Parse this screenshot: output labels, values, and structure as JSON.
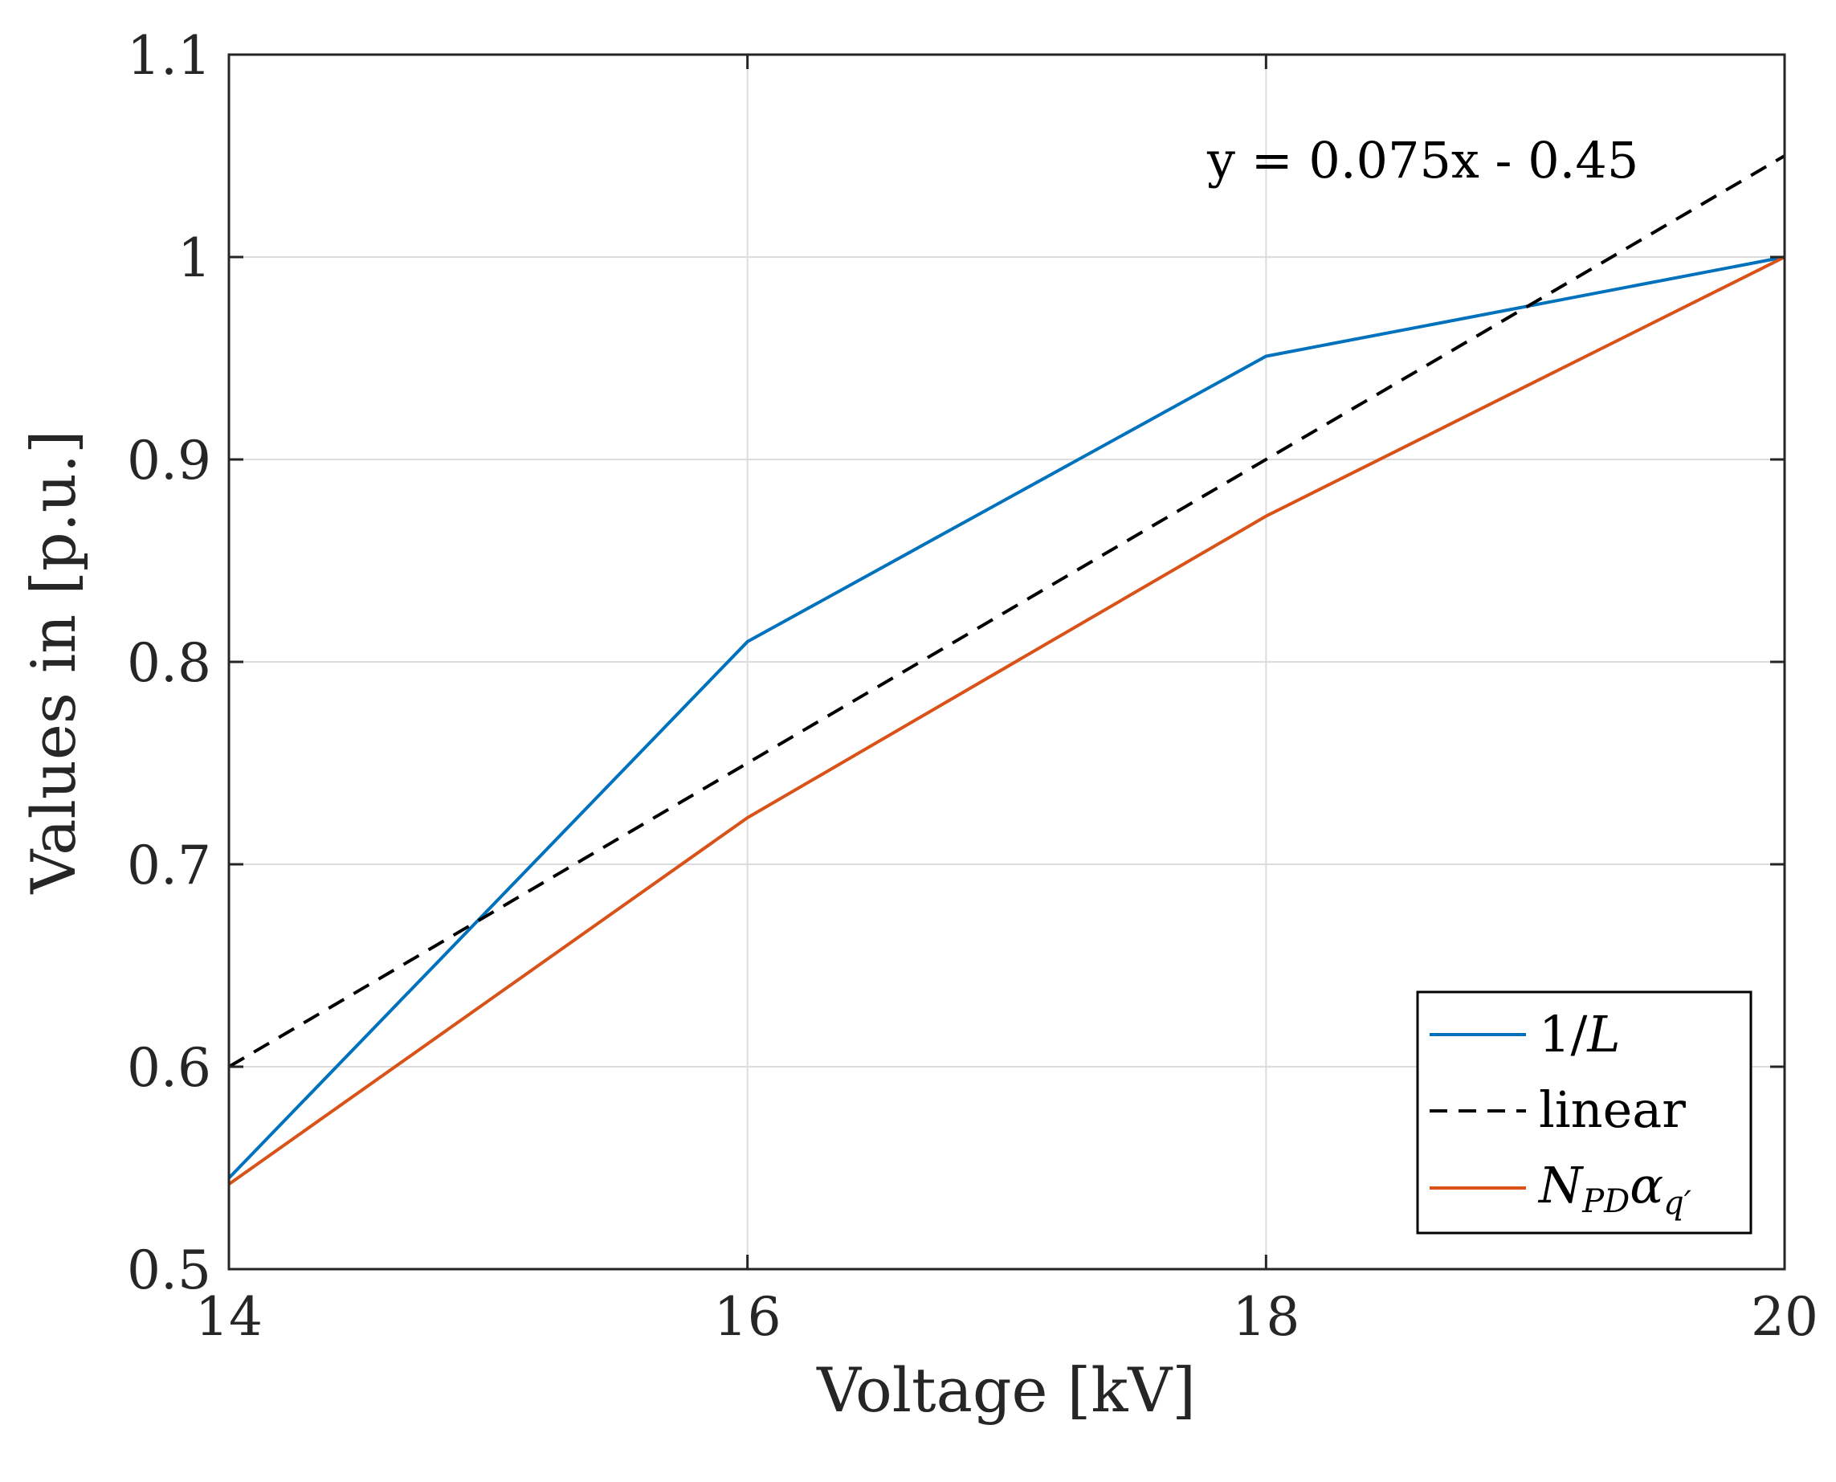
{
  "chart_data": {
    "type": "line",
    "title": "",
    "xlabel": "Voltage [kV]",
    "ylabel": "Values in [p.u.]",
    "xlim": [
      14,
      20
    ],
    "ylim": [
      0.5,
      1.1
    ],
    "xticks": [
      14,
      16,
      18,
      20
    ],
    "xtick_labels": [
      "14",
      "16",
      "18",
      "20"
    ],
    "yticks": [
      0.5,
      0.6,
      0.7,
      0.8,
      0.9,
      1.0,
      1.1
    ],
    "ytick_labels": [
      "0.5",
      "0.6",
      "0.7",
      "0.8",
      "0.9",
      "1",
      "1.1"
    ],
    "grid": true,
    "legend_position": "bottom-right",
    "annotation": "y = 0.075x - 0.45",
    "series": [
      {
        "name": "1/L",
        "legend_main": "1/",
        "legend_italic": "L",
        "color": "#0072BD",
        "dash": "solid",
        "x": [
          14,
          16,
          18,
          20
        ],
        "y": [
          0.545,
          0.81,
          0.951,
          1.0
        ]
      },
      {
        "name": "linear",
        "legend_main": "linear",
        "color": "#000000",
        "dash": "dashed",
        "x": [
          14,
          20
        ],
        "y": [
          0.6,
          1.05
        ]
      },
      {
        "name": "N_PD α_q'",
        "legend_italic": "N",
        "legend_sub": "PD",
        "legend_greek": "α",
        "legend_sub2": "q′",
        "color": "#D95319",
        "dash": "solid",
        "x": [
          14,
          16,
          18,
          20
        ],
        "y": [
          0.542,
          0.723,
          0.872,
          1.0
        ]
      }
    ]
  }
}
